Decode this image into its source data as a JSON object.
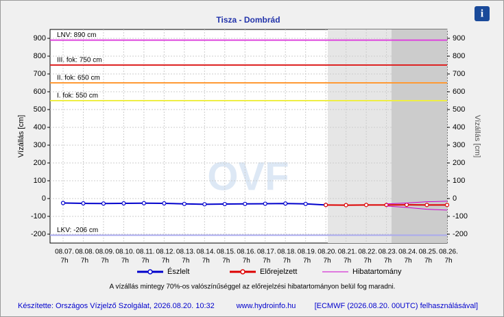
{
  "chart_data": {
    "type": "line",
    "title": "Tisza - Dombrád",
    "y_label": "Vízállás [cm]",
    "y2_label": "Vízállás [cm]",
    "watermark": "OVF",
    "categories": [
      "08.07.",
      "08.08.",
      "08.09.",
      "08.10.",
      "08.11.",
      "08.12.",
      "08.13.",
      "08.14.",
      "08.15.",
      "08.16.",
      "08.17.",
      "08.18.",
      "08.19.",
      "08.20.",
      "08.21.",
      "08.22.",
      "08.23.",
      "08.24.",
      "08.25.",
      "08.26."
    ],
    "hour_label": "7h",
    "ylim": [
      -250,
      950
    ],
    "yticks": [
      -200,
      -100,
      0,
      100,
      200,
      300,
      400,
      500,
      600,
      700,
      800,
      900
    ],
    "grid": true,
    "series": [
      {
        "name": "Észlelt",
        "color": "#0000cc",
        "values": [
          -25,
          -27,
          -28,
          -27,
          -26,
          -27,
          -30,
          -32,
          -31,
          -30,
          -29,
          -28,
          -30,
          -36,
          null,
          null,
          null,
          null,
          null,
          null
        ]
      },
      {
        "name": "Előrejelzett",
        "color": "#dd0000",
        "values": [
          null,
          null,
          null,
          null,
          null,
          null,
          null,
          null,
          null,
          null,
          null,
          null,
          null,
          -36,
          -37,
          -36,
          -36,
          -35,
          -36,
          -36
        ]
      },
      {
        "name": "Hibatartomány",
        "color": "#cc00cc",
        "upper": [
          null,
          null,
          null,
          null,
          null,
          null,
          null,
          null,
          null,
          null,
          null,
          null,
          null,
          null,
          null,
          null,
          -30,
          -25,
          -18,
          -15
        ],
        "lower": [
          null,
          null,
          null,
          null,
          null,
          null,
          null,
          null,
          null,
          null,
          null,
          null,
          null,
          null,
          null,
          null,
          -42,
          -50,
          -60,
          -65
        ]
      }
    ],
    "thresholds": [
      {
        "label": "LNV: 890 cm",
        "value": 890,
        "color": "#dd44dd"
      },
      {
        "label": "III. fok: 750 cm",
        "value": 750,
        "color": "#dd2222"
      },
      {
        "label": "II. fok: 650 cm",
        "value": 650,
        "color": "#ff9933"
      },
      {
        "label": "I. fok: 550 cm",
        "value": 550,
        "color": "#eeee44"
      },
      {
        "label": "LKV: -206 cm",
        "value": -206,
        "color": "#aaaaee"
      }
    ],
    "note": "A vízállás mintegy 70%-os valószínűséggel az előrejelzési hibatartományon belül fog maradni.",
    "footer": {
      "author": "Készítette: Országos Vízjelző Szolgálat, 2026.08.20. 10:32",
      "url": "www.hydroinfo.hu",
      "model": "[ECMWF (2026.08.20. 00UTC) felhasználásával]"
    }
  }
}
